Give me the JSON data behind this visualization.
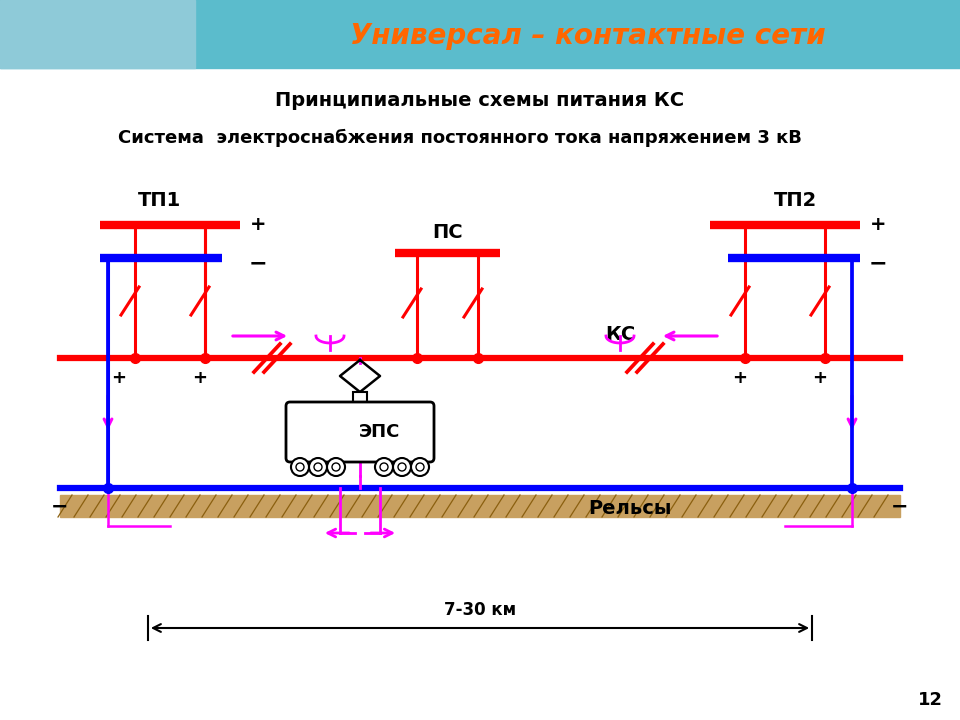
{
  "title1": "Принципиальные схемы питания КС",
  "title2": "Система  электроснабжения постоянного тока напряжением 3 кВ",
  "header_text": "Универсал – контактные сети",
  "label_tp1": "ТП1",
  "label_tp2": "ТП2",
  "label_ps": "ПС",
  "label_ks": "КС",
  "label_eps": "ЭПС",
  "label_rails": "Рельсы",
  "label_dist": "7-30 км",
  "page_num": "12",
  "color_red": "#FF0000",
  "color_blue": "#0000FF",
  "color_magenta": "#FF00FF",
  "color_black": "#000000",
  "color_header_bg": "#5BBCCC",
  "color_header_text": "#FF6600",
  "color_ground": "#C8A060",
  "bg_color": "#FFFFFF"
}
